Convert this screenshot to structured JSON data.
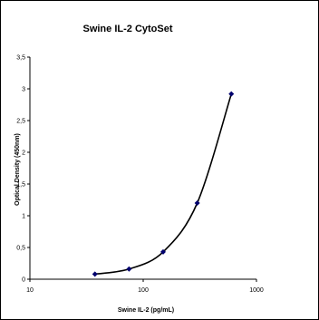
{
  "chart_data": {
    "type": "scatter",
    "title": "Swine IL-2 CytoSet",
    "xlabel": "Swine IL-2 (pg/mL)",
    "ylabel": "Optical Density (450nm)",
    "x_scale": "log",
    "xlim": [
      10,
      1000
    ],
    "ylim": [
      0,
      3.5
    ],
    "x_ticks": [
      10,
      100,
      1000
    ],
    "y_ticks": [
      "0",
      "0,5",
      "1",
      "1,5",
      "2",
      "2,5",
      "3",
      "3,5"
    ],
    "grid": false,
    "legend": "none",
    "series": [
      {
        "x": [
          37.5,
          75,
          150,
          300,
          600
        ],
        "values": [
          0.08,
          0.16,
          0.43,
          1.2,
          2.92
        ]
      }
    ],
    "fit_curve": "smooth fitted curve through points",
    "colors": {
      "marker": "#00006e",
      "curve": "#000000",
      "axis": "#000000"
    }
  }
}
